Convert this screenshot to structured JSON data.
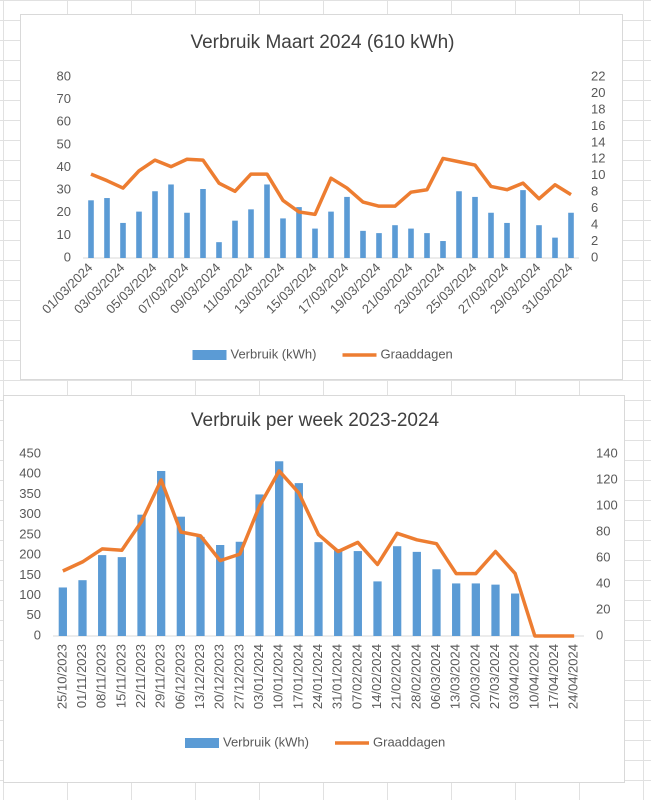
{
  "chart_data": [
    {
      "type": "combo",
      "title": "Verbruik Maart 2024 (610 kWh)",
      "categories": [
        "01/03/2024",
        null,
        "03/03/2024",
        null,
        "05/03/2024",
        null,
        "07/03/2024",
        null,
        "09/03/2024",
        null,
        "11/03/2024",
        null,
        "13/03/2024",
        null,
        "15/03/2024",
        null,
        "17/03/2024",
        null,
        "19/03/2024",
        null,
        "21/03/2024",
        null,
        "23/03/2024",
        null,
        "25/03/2024",
        null,
        "27/03/2024",
        null,
        "29/03/2024",
        null,
        "31/03/2024"
      ],
      "series": [
        {
          "name": "Verbruik (kWh)",
          "type": "bar",
          "color": "#5b9bd5",
          "values": [
            25.5,
            26.5,
            15.5,
            20.5,
            29.5,
            32.5,
            20,
            30.5,
            7,
            16.5,
            21.5,
            32.5,
            17.5,
            22.5,
            13,
            20.5,
            27,
            12,
            11,
            14.5,
            13,
            11,
            7.5,
            29.5,
            27,
            20,
            15.5,
            30,
            14.5,
            9,
            20
          ]
        },
        {
          "name": "Graaddagen",
          "type": "line",
          "axis": "y2",
          "color": "#ed7d31",
          "values": [
            10.2,
            9.4,
            8.5,
            10.6,
            11.9,
            11.1,
            12.0,
            11.9,
            9.1,
            8.1,
            10.2,
            10.2,
            7.0,
            5.6,
            5.3,
            9.7,
            8.5,
            6.8,
            6.3,
            6.3,
            8.0,
            8.3,
            12.1,
            11.7,
            11.3,
            8.7,
            8.3,
            9.1,
            7.2,
            8.9,
            7.7
          ]
        }
      ],
      "ylim": [
        0,
        80
      ],
      "yticks": [
        0,
        10,
        20,
        30,
        40,
        50,
        60,
        70,
        80
      ],
      "y2lim": [
        0,
        22
      ],
      "y2ticks": [
        0,
        2,
        4,
        6,
        8,
        10,
        12,
        14,
        16,
        18,
        20,
        22
      ],
      "grid": false,
      "legend": "bottom"
    },
    {
      "type": "combo",
      "title": "Verbruik per week 2023-2024",
      "categories": [
        "25/10/2023",
        "01/11/2023",
        "08/11/2023",
        "15/11/2023",
        "22/11/2023",
        "29/11/2023",
        "06/12/2023",
        "13/12/2023",
        "20/12/2023",
        "27/12/2023",
        "03/01/2024",
        "10/01/2024",
        "17/01/2024",
        "24/01/2024",
        "31/01/2024",
        "07/02/2024",
        "14/02/2024",
        "21/02/2024",
        "28/02/2024",
        "06/03/2024",
        "13/03/2024",
        "20/03/2024",
        "27/03/2024",
        "03/04/2024",
        "10/04/2024",
        "17/04/2024",
        "24/04/2024"
      ],
      "series": [
        {
          "name": "Verbruik (kWh)",
          "type": "bar",
          "color": "#5b9bd5",
          "values": [
            120,
            138,
            200,
            195,
            300,
            408,
            295,
            245,
            225,
            233,
            350,
            432,
            378,
            232,
            215,
            210,
            135,
            222,
            208,
            165,
            130,
            130,
            127,
            105,
            null,
            null,
            null
          ]
        },
        {
          "name": "Graaddagen",
          "type": "line",
          "axis": "y2",
          "color": "#ed7d31",
          "values": [
            50,
            57,
            67,
            66,
            88,
            120,
            80,
            77,
            58,
            63,
            100,
            127,
            110,
            78,
            65,
            72,
            55,
            79,
            74,
            71,
            48,
            48,
            65,
            48,
            0,
            0,
            0
          ]
        }
      ],
      "ylim": [
        0,
        450
      ],
      "yticks": [
        0,
        50,
        100,
        150,
        200,
        250,
        300,
        350,
        400,
        450
      ],
      "y2lim": [
        0,
        140
      ],
      "y2ticks": [
        0,
        20,
        40,
        60,
        80,
        100,
        120,
        140
      ],
      "grid": false,
      "legend": "bottom"
    }
  ]
}
